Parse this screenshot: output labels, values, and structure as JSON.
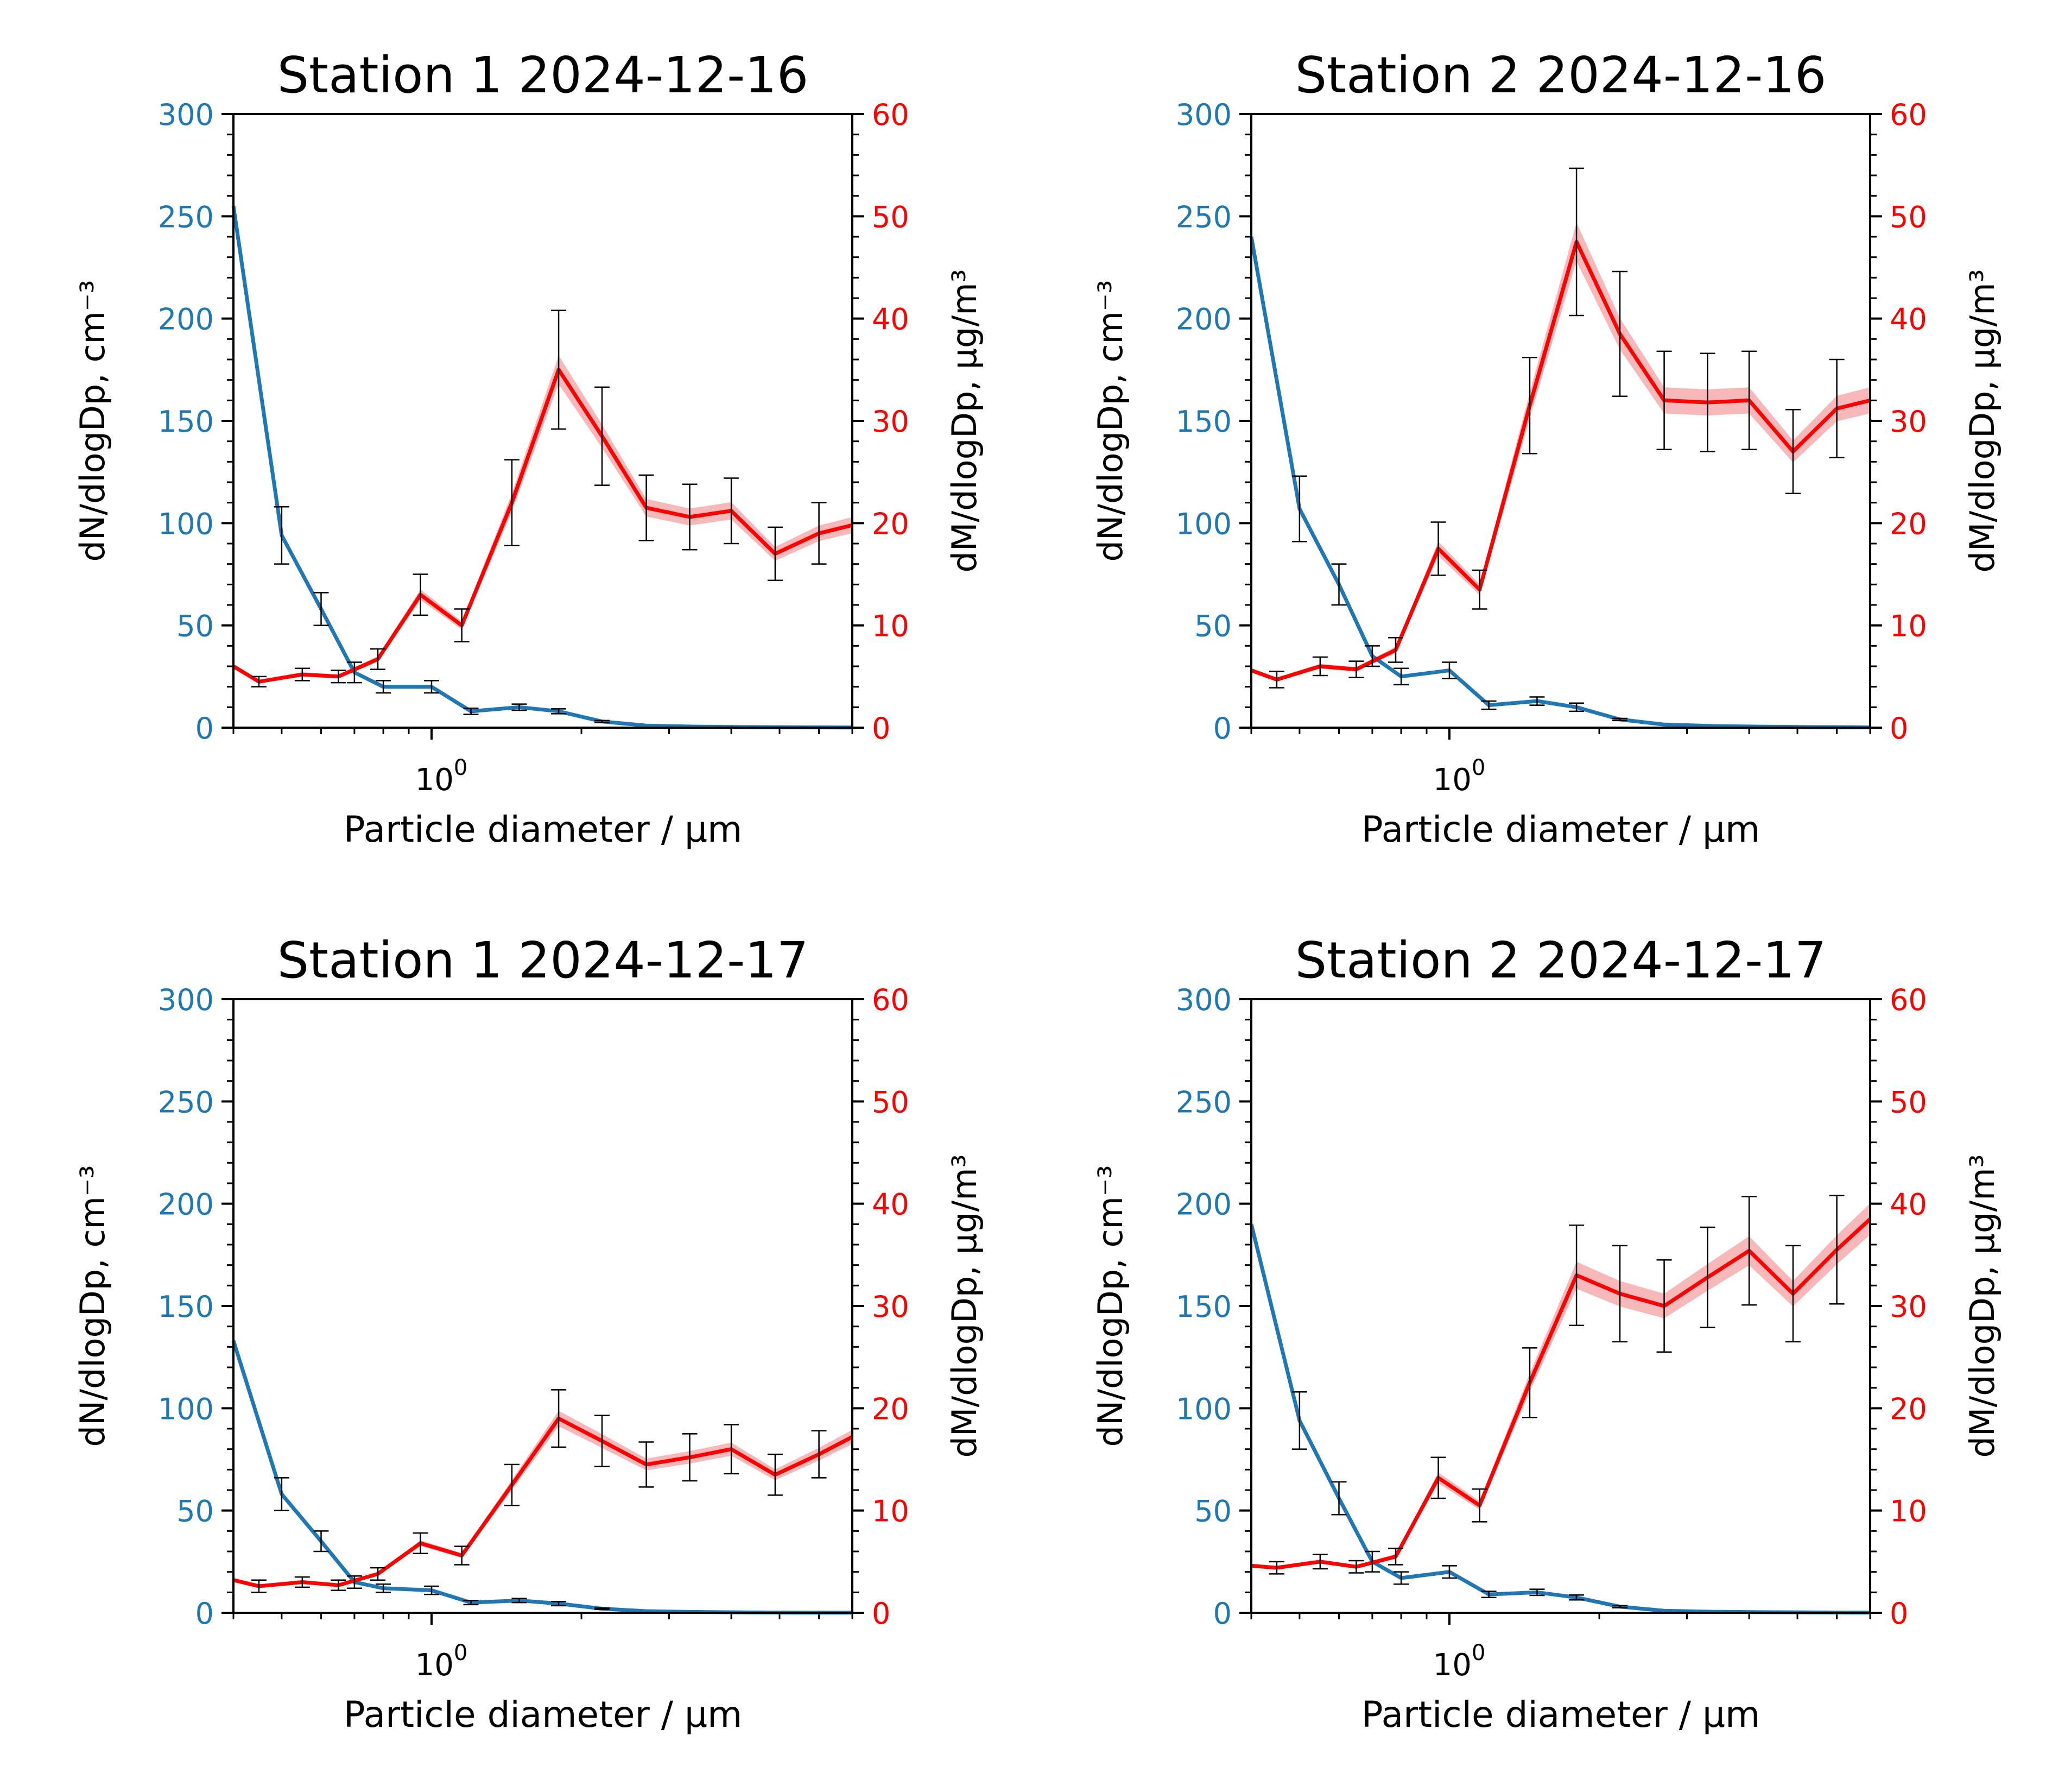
{
  "figure": {
    "colors": {
      "number": "#1f77b4",
      "mass": "#ff0000",
      "mass_band": "#f4a6a6",
      "errorbar": "#000000",
      "axis": "#000000"
    }
  },
  "chart_data": [
    {
      "type": "line",
      "title": "Station 1 2024-12-16",
      "xlabel": "Particle diameter / μm",
      "xscale": "log",
      "xlim": [
        0.4,
        7.0
      ],
      "xtick_labels": [
        "10",
        "0"
      ],
      "ylabel_left": "dN/dlogDp, cm⁻³",
      "ylabel_right": "dM/dlogDp, μg/m³",
      "ylim_left": [
        0,
        300
      ],
      "ylim_right": [
        0,
        60
      ],
      "yticks_left": [
        "0",
        "50",
        "100",
        "150",
        "200",
        "250",
        "300"
      ],
      "yticks_right": [
        "0",
        "10",
        "20",
        "30",
        "40",
        "50",
        "60"
      ],
      "grid": false,
      "series": [
        {
          "axis": "left",
          "x": [
            0.4,
            0.5,
            0.6,
            0.7,
            0.8,
            1.0,
            1.2,
            1.5,
            1.8,
            2.2,
            2.7,
            3.4,
            4.2,
            5.2,
            6.5,
            7.0
          ],
          "values": [
            255,
            94,
            58,
            27,
            20,
            20,
            8,
            10,
            8,
            3,
            1,
            0.5,
            0.3,
            0.2,
            0.1,
            0.1
          ],
          "err": [
            35,
            14,
            8,
            5,
            3,
            3,
            1.5,
            1.5,
            1.2,
            0.5,
            0.2,
            0.1,
            0.1,
            0.1,
            0.05,
            0.05
          ]
        },
        {
          "axis": "right",
          "x": [
            0.4,
            0.45,
            0.55,
            0.65,
            0.78,
            0.95,
            1.15,
            1.45,
            1.8,
            2.2,
            2.7,
            3.3,
            4.0,
            4.9,
            6.0,
            7.0
          ],
          "values": [
            6,
            4.5,
            5.2,
            5,
            6.7,
            13,
            10,
            22,
            35,
            28.5,
            21.5,
            20.6,
            21.2,
            17,
            19,
            19.8
          ],
          "err": [
            1.5,
            0.5,
            0.6,
            0.6,
            1.0,
            2.0,
            1.6,
            4.2,
            5.8,
            4.8,
            3.2,
            3.2,
            3.2,
            2.6,
            3.0,
            3.0
          ]
        }
      ]
    },
    {
      "type": "line",
      "title": "Station 2 2024-12-16",
      "xlabel": "Particle diameter / μm",
      "xscale": "log",
      "xlim": [
        0.4,
        7.0
      ],
      "xtick_labels": [
        "10",
        "0"
      ],
      "ylabel_left": "dN/dlogDp, cm⁻³",
      "ylabel_right": "dM/dlogDp, μg/m³",
      "ylim_left": [
        0,
        300
      ],
      "ylim_right": [
        0,
        60
      ],
      "yticks_left": [
        "0",
        "50",
        "100",
        "150",
        "200",
        "250",
        "300"
      ],
      "yticks_right": [
        "0",
        "10",
        "20",
        "30",
        "40",
        "50",
        "60"
      ],
      "grid": false,
      "series": [
        {
          "axis": "left",
          "x": [
            0.4,
            0.5,
            0.6,
            0.7,
            0.8,
            1.0,
            1.2,
            1.5,
            1.8,
            2.2,
            2.7,
            3.4,
            4.2,
            5.2,
            6.5,
            7.0
          ],
          "values": [
            240,
            107,
            70,
            35,
            25,
            28,
            11,
            13,
            10,
            4,
            1.5,
            0.8,
            0.5,
            0.3,
            0.2,
            0.1
          ],
          "err": [
            38,
            16,
            10,
            5,
            4,
            4,
            2,
            2,
            2,
            0.5,
            0.2,
            0.1,
            0.1,
            0.1,
            0.05,
            0.05
          ]
        },
        {
          "axis": "right",
          "x": [
            0.4,
            0.45,
            0.55,
            0.65,
            0.78,
            0.95,
            1.15,
            1.45,
            1.8,
            2.2,
            2.7,
            3.3,
            4.0,
            4.9,
            6.0,
            7.0
          ],
          "values": [
            5.6,
            4.7,
            6,
            5.7,
            7.6,
            17.5,
            13.5,
            31.5,
            47.5,
            38.5,
            32,
            31.8,
            32,
            27,
            31.2,
            32
          ],
          "err": [
            1.5,
            0.8,
            0.9,
            0.8,
            1.2,
            2.6,
            1.9,
            4.7,
            7.2,
            6.1,
            4.8,
            4.8,
            4.8,
            4.1,
            4.8,
            4.8
          ]
        }
      ]
    },
    {
      "type": "line",
      "title": "Station 1 2024-12-17",
      "xlabel": "Particle diameter / μm",
      "xscale": "log",
      "xlim": [
        0.4,
        7.0
      ],
      "xtick_labels": [
        "10",
        "0"
      ],
      "ylabel_left": "dN/dlogDp, cm⁻³",
      "ylabel_right": "dM/dlogDp, μg/m³",
      "ylim_left": [
        0,
        300
      ],
      "ylim_right": [
        0,
        60
      ],
      "yticks_left": [
        "0",
        "50",
        "100",
        "150",
        "200",
        "250",
        "300"
      ],
      "yticks_right": [
        "0",
        "10",
        "20",
        "30",
        "40",
        "50",
        "60"
      ],
      "grid": false,
      "series": [
        {
          "axis": "left",
          "x": [
            0.4,
            0.5,
            0.6,
            0.7,
            0.8,
            1.0,
            1.2,
            1.5,
            1.8,
            2.2,
            2.7,
            3.4,
            4.2,
            5.2,
            6.5,
            7.0
          ],
          "values": [
            133,
            58,
            35,
            15,
            12,
            11,
            5,
            6,
            4.5,
            2,
            0.8,
            0.4,
            0.2,
            0.1,
            0.05,
            0.05
          ],
          "err": [
            8,
            8,
            5,
            3,
            2,
            2,
            1,
            1,
            1,
            0.3,
            0.1,
            0.1,
            0.1,
            0.05,
            0.05,
            0.05
          ]
        },
        {
          "axis": "right",
          "x": [
            0.4,
            0.45,
            0.55,
            0.65,
            0.78,
            0.95,
            1.15,
            1.45,
            1.8,
            2.2,
            2.7,
            3.3,
            4.0,
            4.9,
            6.0,
            7.0
          ],
          "values": [
            3.2,
            2.6,
            3,
            2.7,
            3.8,
            6.8,
            5.6,
            12.5,
            19,
            16.8,
            14.5,
            15.2,
            16,
            13.5,
            15.5,
            17.2
          ],
          "err": [
            0.8,
            0.6,
            0.5,
            0.5,
            0.6,
            1.0,
            0.9,
            2.0,
            2.8,
            2.5,
            2.2,
            2.3,
            2.4,
            2.0,
            2.3,
            2.5
          ]
        }
      ]
    },
    {
      "type": "line",
      "title": "Station 2 2024-12-17",
      "xlabel": "Particle diameter / μm",
      "xscale": "log",
      "xlim": [
        0.4,
        7.0
      ],
      "xtick_labels": [
        "10",
        "0"
      ],
      "ylabel_left": "dN/dlogDp, cm⁻³",
      "ylabel_right": "dM/dlogDp, μg/m³",
      "ylim_left": [
        0,
        300
      ],
      "ylim_right": [
        0,
        60
      ],
      "yticks_left": [
        "0",
        "50",
        "100",
        "150",
        "200",
        "250",
        "300"
      ],
      "yticks_right": [
        "0",
        "10",
        "20",
        "30",
        "40",
        "50",
        "60"
      ],
      "grid": false,
      "series": [
        {
          "axis": "left",
          "x": [
            0.4,
            0.5,
            0.6,
            0.7,
            0.8,
            1.0,
            1.2,
            1.5,
            1.8,
            2.2,
            2.7,
            3.4,
            4.2,
            5.2,
            6.5,
            7.0
          ],
          "values": [
            190,
            94,
            56,
            25,
            17,
            20,
            9,
            10,
            7.5,
            3,
            1,
            0.5,
            0.3,
            0.2,
            0.1,
            0.1
          ],
          "err": [
            30,
            14,
            8,
            5,
            3,
            3,
            1.5,
            1.5,
            1.2,
            0.5,
            0.2,
            0.1,
            0.1,
            0.1,
            0.05,
            0.05
          ]
        },
        {
          "axis": "right",
          "x": [
            0.4,
            0.45,
            0.55,
            0.65,
            0.78,
            0.95,
            1.15,
            1.45,
            1.8,
            2.2,
            2.7,
            3.3,
            4.0,
            4.9,
            6.0,
            7.0
          ],
          "values": [
            4.6,
            4.4,
            5,
            4.5,
            5.5,
            13.2,
            10.5,
            22.5,
            33,
            31.2,
            30,
            32.8,
            35.4,
            31.2,
            35.5,
            38.5
          ],
          "err": [
            0.6,
            0.6,
            0.7,
            0.6,
            0.8,
            2.0,
            1.6,
            3.4,
            4.9,
            4.7,
            4.5,
            4.9,
            5.3,
            4.7,
            5.3,
            5.8
          ]
        }
      ]
    }
  ]
}
